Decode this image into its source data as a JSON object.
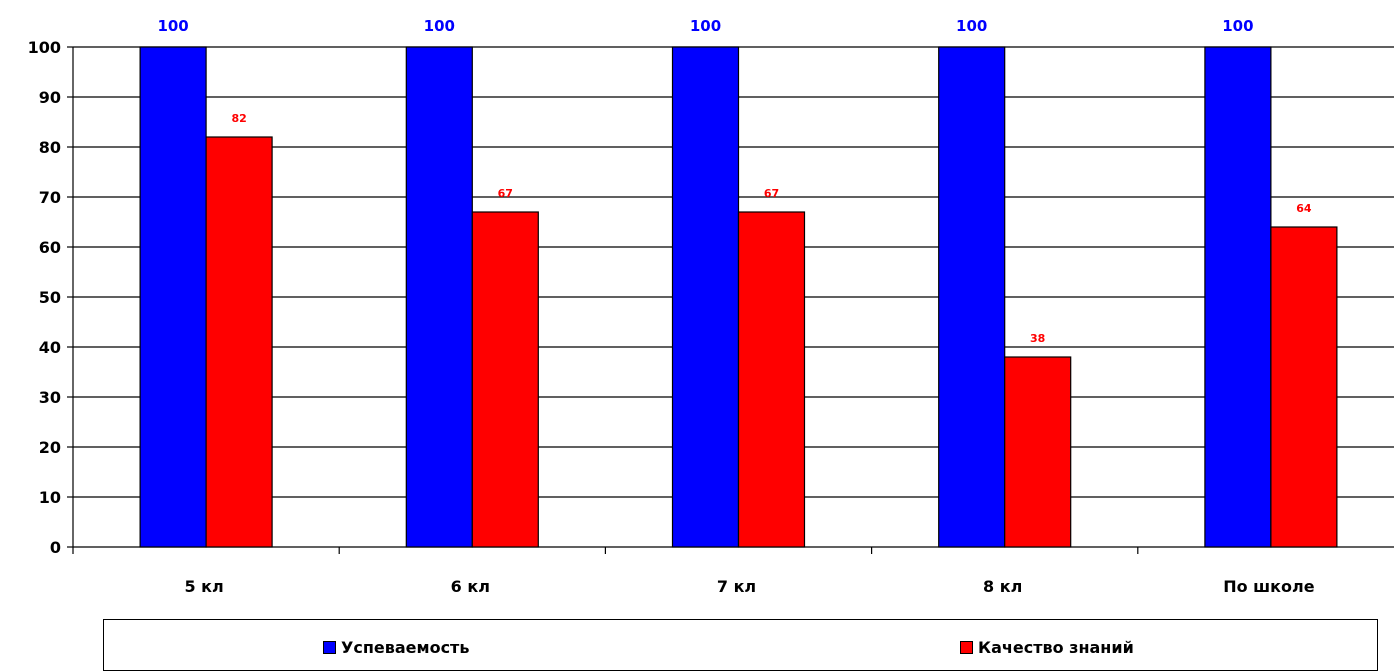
{
  "chart_data": {
    "type": "bar",
    "categories": [
      "5 кл",
      "6 кл",
      "7 кл",
      "8 кл",
      "По школе"
    ],
    "series": [
      {
        "name": "Успеваемость",
        "values": [
          100,
          100,
          100,
          100,
          100
        ],
        "color": "#0000ff"
      },
      {
        "name": "Качество знаний",
        "values": [
          82,
          67,
          67,
          38,
          64
        ],
        "color": "#ff0000"
      }
    ],
    "ylim": [
      0,
      100
    ],
    "yticks": [
      0,
      10,
      20,
      30,
      40,
      50,
      60,
      70,
      80,
      90,
      100
    ],
    "grid": true,
    "legend_position": "bottom",
    "title": "",
    "xlabel": "",
    "ylabel": ""
  }
}
